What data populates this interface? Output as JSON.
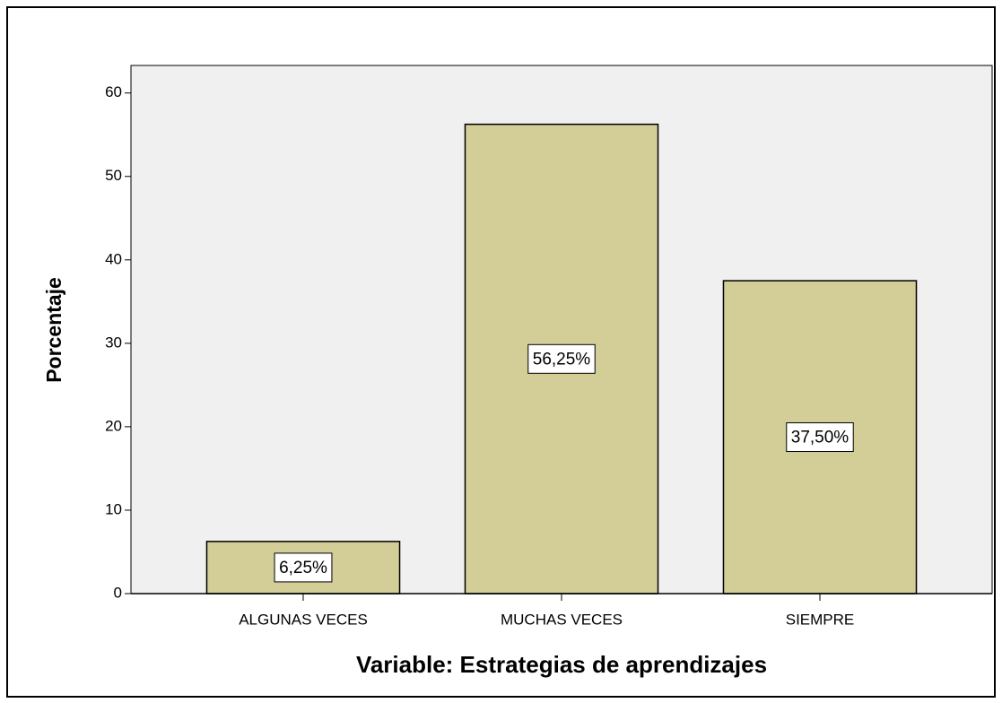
{
  "chart_data": {
    "type": "bar",
    "categories": [
      "ALGUNAS VECES",
      "MUCHAS VECES",
      "SIEMPRE"
    ],
    "values": [
      6.25,
      56.25,
      37.5
    ],
    "value_labels": [
      "6,25%",
      "56,25%",
      "37,50%"
    ],
    "color": "#d3ce97",
    "ylim": [
      0,
      63.3
    ],
    "yticks": [
      0,
      10,
      20,
      30,
      40,
      50,
      60
    ],
    "xlabel": "Variable: Estrategias de aprendizajes",
    "ylabel": "Porcentaje"
  }
}
